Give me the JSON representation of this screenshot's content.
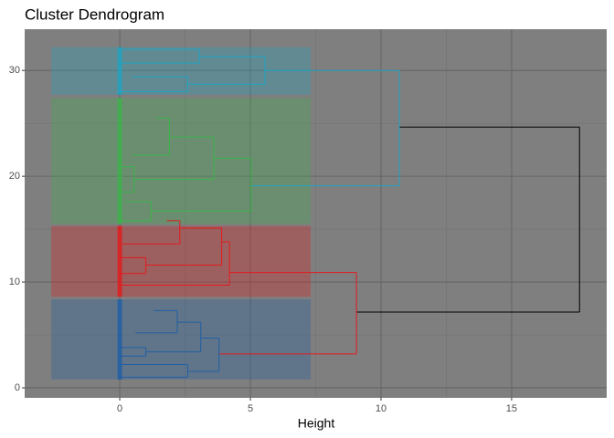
{
  "chart_data": {
    "type": "dendrogram",
    "title": "Cluster Dendrogram",
    "xlabel": "Height",
    "xlim": [
      -3.64,
      18.64
    ],
    "ylim": [
      -0.95,
      33.9
    ],
    "xticks": [
      0,
      5,
      10,
      15
    ],
    "yticks": [
      0,
      10,
      20,
      30
    ],
    "grid": true,
    "background": "#7f7f7f",
    "clusters": [
      {
        "color": "#1f5fa6",
        "xlim": [
          -2.62,
          7.31
        ],
        "ylim": [
          0.78,
          8.36
        ]
      },
      {
        "color": "#e41a1c",
        "xlim": [
          -2.62,
          7.31
        ],
        "ylim": [
          8.6,
          15.3
        ]
      },
      {
        "color": "#3cb44b",
        "xlim": [
          -2.62,
          7.31
        ],
        "ylim": [
          15.5,
          27.4
        ]
      },
      {
        "color": "#1fa5c4",
        "xlim": [
          -2.62,
          7.31
        ],
        "ylim": [
          27.7,
          32.2
        ]
      }
    ],
    "links": [
      {
        "color": "#000000",
        "height": 17.6,
        "y_low": 7.16,
        "y_high": 24.65,
        "low_child": 9.06,
        "high_child": 10.7
      },
      {
        "color": "#1fa5c4",
        "height": 10.7,
        "y_low": 19.1,
        "y_high": 30.0,
        "low_child": 5.03,
        "high_child": 5.56
      },
      {
        "color": "#1fa5c4",
        "height": 5.56,
        "y_low": 28.7,
        "y_high": 31.3,
        "low_child": 2.6,
        "high_child": 3.05
      },
      {
        "color": "#1fa5c4",
        "height": 3.05,
        "y_low": 30.7,
        "y_high": 32.0,
        "low_child": 0,
        "high_child": 0
      },
      {
        "color": "#1fa5c4",
        "height": 2.6,
        "y_low": 28.0,
        "y_high": 29.4,
        "low_child": 0,
        "high_child": 0.49
      },
      {
        "color": "#3cb44b",
        "height": 5.03,
        "y_low": 16.7,
        "y_high": 21.7,
        "low_child": 1.2,
        "high_child": 3.6
      },
      {
        "color": "#3cb44b",
        "height": 3.6,
        "y_low": 19.7,
        "y_high": 23.7,
        "low_child": 0.55,
        "high_child": 1.9
      },
      {
        "color": "#3cb44b",
        "height": 1.9,
        "y_low": 22.0,
        "y_high": 25.5,
        "low_child": 0.5,
        "high_child": 1.4
      },
      {
        "color": "#3cb44b",
        "height": 1.2,
        "y_low": 15.8,
        "y_high": 17.6,
        "low_child": 0,
        "high_child": 0.2
      },
      {
        "color": "#3cb44b",
        "height": 0.55,
        "y_low": 18.5,
        "y_high": 20.9,
        "low_child": 0.1,
        "high_child": 0.1
      },
      {
        "color": "#e41a1c",
        "height": 9.06,
        "y_low": 3.2,
        "y_high": 10.9,
        "low_child": 3.8,
        "high_child": 4.2
      },
      {
        "color": "#e41a1c",
        "height": 4.2,
        "y_low": 9.7,
        "y_high": 13.8,
        "low_child": 0.05,
        "high_child": 3.9
      },
      {
        "color": "#e41a1c",
        "height": 3.9,
        "y_low": 11.6,
        "y_high": 15.1,
        "low_child": 1.0,
        "high_child": 2.3
      },
      {
        "color": "#e41a1c",
        "height": 2.3,
        "y_low": 13.6,
        "y_high": 15.8,
        "low_child": 0.1,
        "high_child": 1.8
      },
      {
        "color": "#e41a1c",
        "height": 1.0,
        "y_low": 10.8,
        "y_high": 12.3,
        "low_child": 0,
        "high_child": 0
      },
      {
        "color": "#1f5fa6",
        "height": 3.8,
        "y_low": 1.55,
        "y_high": 4.7,
        "low_child": 2.6,
        "high_child": 3.1
      },
      {
        "color": "#1f5fa6",
        "height": 3.1,
        "y_low": 3.4,
        "y_high": 6.2,
        "low_child": 1.0,
        "high_child": 2.2
      },
      {
        "color": "#1f5fa6",
        "height": 2.2,
        "y_low": 5.2,
        "y_high": 7.3,
        "low_child": 0.6,
        "high_child": 1.3
      },
      {
        "color": "#1f5fa6",
        "height": 2.6,
        "y_low": 1.0,
        "y_high": 2.2,
        "low_child": 0,
        "high_child": 0
      },
      {
        "color": "#1f5fa6",
        "height": 1.0,
        "y_low": 3.0,
        "y_high": 3.8,
        "low_child": 0,
        "high_child": 0
      }
    ]
  }
}
